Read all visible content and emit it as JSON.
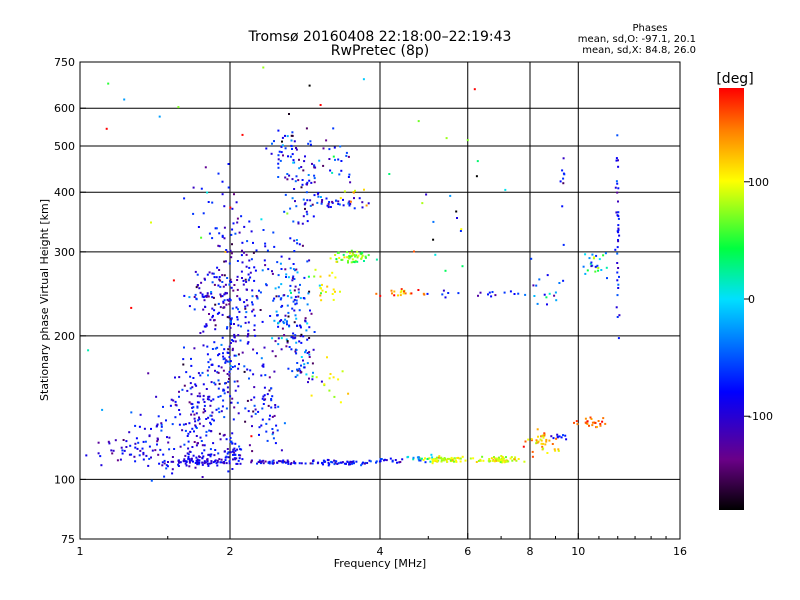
{
  "chart_data": {
    "type": "scatter",
    "title": "Tromsø 20160408 22:18:00–22:19:43",
    "subtitle": "RwPretec (8p)",
    "xlabel": "Frequency [MHz]",
    "ylabel": "Stationary phase Virtual Height [km]",
    "x_scale": "log",
    "y_scale": "log",
    "xlim": [
      1,
      16
    ],
    "ylim": [
      75,
      750
    ],
    "x_ticks": [
      1,
      2,
      4,
      6,
      8,
      10,
      16
    ],
    "x_tick_labels": [
      "1",
      "2",
      "4",
      "6",
      "8",
      "10",
      "16"
    ],
    "y_ticks": [
      75,
      100,
      200,
      300,
      400,
      500,
      600,
      750
    ],
    "y_tick_labels": [
      "75",
      "100",
      "200",
      "300",
      "400",
      "500",
      "600",
      "750"
    ],
    "x_gridlines": [
      2,
      4,
      6,
      8,
      10
    ],
    "y_gridlines": [
      100,
      200,
      300,
      400,
      500,
      600
    ],
    "grid": true,
    "stats": {
      "heading": "Phases",
      "line1": "mean, sd,O: -97.1, 20.1",
      "line2": "mean, sd,X:  84.8, 26.0"
    },
    "colorbar": {
      "label": "[deg]",
      "range": [
        -180,
        180
      ],
      "ticks": [
        100,
        0,
        -100
      ],
      "tick_labels": [
        "100",
        "0",
        "-100"
      ],
      "colormap": "rainbow: black(-180) → purple → blue(-100) → cyan(0) → green → yellow(100) → red(180)"
    },
    "point_series": [
      {
        "x": 1.08,
        "y": 113,
        "dx": 0.15,
        "dy": 0.008,
        "n": 8,
        "phase": -95,
        "sp": 15
      },
      {
        "x": 1.25,
        "y": 116,
        "dx": 0.08,
        "dy": 0.04,
        "n": 30,
        "phase": -100,
        "sp": 20
      },
      {
        "x": 1.5,
        "y": 118,
        "dx": 0.1,
        "dy": 0.07,
        "n": 70,
        "phase": -105,
        "sp": 20
      },
      {
        "x": 1.78,
        "y": 112,
        "dx": 0.07,
        "dy": 0.04,
        "n": 40,
        "phase": -105,
        "sp": 15
      },
      {
        "x": 1.7,
        "y": 140,
        "dx": 0.08,
        "dy": 0.1,
        "n": 100,
        "phase": -105,
        "sp": 20
      },
      {
        "x": 1.95,
        "y": 175,
        "dx": 0.07,
        "dy": 0.16,
        "n": 150,
        "phase": -105,
        "sp": 25
      },
      {
        "x": 2.1,
        "y": 250,
        "dx": 0.07,
        "dy": 0.18,
        "n": 150,
        "phase": -110,
        "sp": 25
      },
      {
        "x": 1.85,
        "y": 245,
        "dx": 0.06,
        "dy": 0.05,
        "n": 60,
        "phase": -110,
        "sp": 25
      },
      {
        "x": 1.85,
        "y": 360,
        "dx": 0.05,
        "dy": 0.15,
        "n": 20,
        "phase": -100,
        "sp": 20
      },
      {
        "x": 2.05,
        "y": 115,
        "dx": 0.02,
        "dy": 0.03,
        "n": 30,
        "phase": -100,
        "sp": 15
      },
      {
        "x": 1.75,
        "y": 109,
        "dx": 0.1,
        "dy": 0.006,
        "n": 60,
        "phase": -110,
        "sp": 10
      },
      {
        "x": 2.45,
        "y": 108.5,
        "dx": 0.06,
        "dy": 0.005,
        "n": 45,
        "phase": -105,
        "sp": 20
      },
      {
        "x": 3.4,
        "y": 108.5,
        "dx": 0.1,
        "dy": 0.006,
        "n": 60,
        "phase": -100,
        "sp": 20
      },
      {
        "x": 4.3,
        "y": 109.5,
        "dx": 0.05,
        "dy": 0.006,
        "n": 14,
        "phase": -95,
        "sp": 20
      },
      {
        "x": 2.35,
        "y": 140,
        "dx": 0.04,
        "dy": 0.09,
        "n": 60,
        "phase": -100,
        "sp": 25
      },
      {
        "x": 2.65,
        "y": 230,
        "dx": 0.05,
        "dy": 0.15,
        "n": 150,
        "phase": -80,
        "sp": 45
      },
      {
        "x": 2.8,
        "y": 395,
        "dx": 0.04,
        "dy": 0.1,
        "n": 60,
        "phase": -90,
        "sp": 30
      },
      {
        "x": 2.6,
        "y": 480,
        "dx": 0.04,
        "dy": 0.08,
        "n": 40,
        "phase": -100,
        "sp": 40
      },
      {
        "x": 2.85,
        "y": 175,
        "dx": 0.03,
        "dy": 0.05,
        "n": 30,
        "phase": -90,
        "sp": 40
      },
      {
        "x": 3.3,
        "y": 380,
        "dx": 0.06,
        "dy": 0.015,
        "n": 30,
        "phase": -95,
        "sp": 30
      },
      {
        "x": 3.2,
        "y": 460,
        "dx": 0.06,
        "dy": 0.07,
        "n": 25,
        "phase": -90,
        "sp": 40
      },
      {
        "x": 3.7,
        "y": 395,
        "dx": 0.04,
        "dy": 0.02,
        "n": 8,
        "phase": 100,
        "sp": 20
      },
      {
        "x": 3.5,
        "y": 292,
        "dx": 0.05,
        "dy": 0.015,
        "n": 50,
        "phase": 70,
        "sp": 25
      },
      {
        "x": 3.1,
        "y": 255,
        "dx": 0.04,
        "dy": 0.04,
        "n": 20,
        "phase": 90,
        "sp": 30
      },
      {
        "x": 3.2,
        "y": 160,
        "dx": 0.05,
        "dy": 0.06,
        "n": 15,
        "phase": 90,
        "sp": 20
      },
      {
        "x": 4.5,
        "y": 246,
        "dx": 0.07,
        "dy": 0.01,
        "n": 20,
        "phase": 150,
        "sp": 30
      },
      {
        "x": 5.5,
        "y": 245,
        "dx": 0.04,
        "dy": 0.01,
        "n": 6,
        "phase": -100,
        "sp": 20
      },
      {
        "x": 7.2,
        "y": 245,
        "dx": 0.06,
        "dy": 0.01,
        "n": 12,
        "phase": -100,
        "sp": 20
      },
      {
        "x": 8.5,
        "y": 250,
        "dx": 0.04,
        "dy": 0.06,
        "n": 15,
        "phase": -60,
        "sp": 40
      },
      {
        "x": 5.4,
        "y": 110,
        "dx": 0.05,
        "dy": 0.008,
        "n": 60,
        "phase": 90,
        "sp": 20
      },
      {
        "x": 7.0,
        "y": 110,
        "dx": 0.05,
        "dy": 0.008,
        "n": 60,
        "phase": 95,
        "sp": 20
      },
      {
        "x": 4.8,
        "y": 111,
        "dx": 0.03,
        "dy": 0.01,
        "n": 15,
        "phase": -40,
        "sp": 40
      },
      {
        "x": 8.5,
        "y": 120,
        "dx": 0.04,
        "dy": 0.03,
        "n": 40,
        "phase": 120,
        "sp": 25
      },
      {
        "x": 9.1,
        "y": 123,
        "dx": 0.02,
        "dy": 0.01,
        "n": 10,
        "phase": -100,
        "sp": 20
      },
      {
        "x": 10.6,
        "y": 132,
        "dx": 0.03,
        "dy": 0.01,
        "n": 25,
        "phase": 150,
        "sp": 15
      },
      {
        "x": 10.8,
        "y": 285,
        "dx": 0.03,
        "dy": 0.04,
        "n": 25,
        "phase": -20,
        "sp": 60
      },
      {
        "x": 12.0,
        "y": 300,
        "dx": 0.004,
        "dy": 0.25,
        "n": 40,
        "phase": -95,
        "sp": 20
      },
      {
        "x": 9.3,
        "y": 400,
        "dx": 0.004,
        "dy": 0.15,
        "n": 10,
        "phase": -90,
        "sp": 40
      },
      {
        "x": 5.3,
        "y": 400,
        "dx": 0.12,
        "dy": 0.2,
        "n": 18,
        "phase": -20,
        "sp": 100
      },
      {
        "x": 2.2,
        "y": 400,
        "dx": 0.5,
        "dy": 0.5,
        "n": 40,
        "phase": 0,
        "sp": 110
      }
    ]
  }
}
